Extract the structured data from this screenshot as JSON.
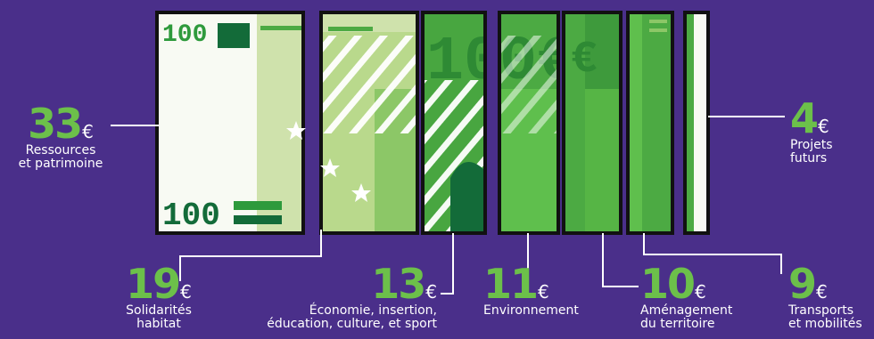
{
  "currency": "€",
  "colors": {
    "background": "#4a2f8a",
    "accent": "#6cc04a",
    "line": "#ffffff"
  },
  "items": [
    {
      "value": "33",
      "label_line1": "Ressources",
      "label_line2": "et patrimoine"
    },
    {
      "value": "19",
      "label_line1": "Solidarités",
      "label_line2": "habitat"
    },
    {
      "value": "13",
      "label_line1": "Économie, insertion,",
      "label_line2": "éducation, culture, et sport"
    },
    {
      "value": "11",
      "label_line1": "Environnement",
      "label_line2": ""
    },
    {
      "value": "10",
      "label_line1": "Aménagement",
      "label_line2": "du territoire"
    },
    {
      "value": "9",
      "label_line1": "Transports",
      "label_line2": "et mobilités"
    },
    {
      "value": "4",
      "label_line1": "Projets",
      "label_line2": "futurs"
    }
  ],
  "banknote": {
    "denomination": "100",
    "symbol": "€"
  }
}
